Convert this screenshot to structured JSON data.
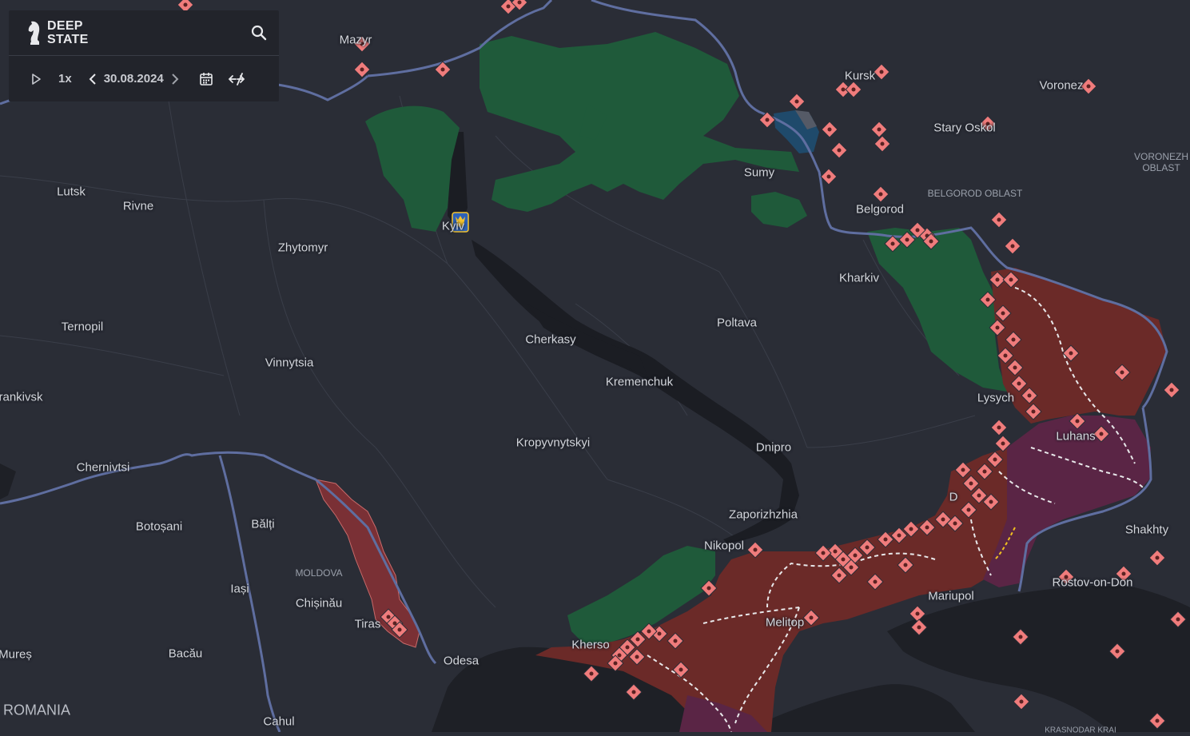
{
  "brand": {
    "line1": "DEEP",
    "line2": "STATE"
  },
  "controls": {
    "speed": "1x",
    "date": "30.08.2024"
  },
  "cities": [
    {
      "name": "Mazyr",
      "label": "Mazyr"
    },
    {
      "name": "Kursk",
      "label": "Kursk"
    },
    {
      "name": "Voronezh",
      "label": "Voronez"
    },
    {
      "name": "Stary Oskol",
      "label": "Stary Oskol"
    },
    {
      "name": "Sumy",
      "label": "Sumy"
    },
    {
      "name": "Belgorod",
      "label": "Belgorod"
    },
    {
      "name": "Lutsk",
      "label": "Lutsk"
    },
    {
      "name": "Rivne",
      "label": "Rivne"
    },
    {
      "name": "Kyiv",
      "label": "Kyiv"
    },
    {
      "name": "Zhytomyr",
      "label": "Zhytomyr"
    },
    {
      "name": "Kharkiv",
      "label": "Kharkiv"
    },
    {
      "name": "Ternopil",
      "label": "Ternopil"
    },
    {
      "name": "Poltava",
      "label": "Poltava"
    },
    {
      "name": "Cherkasy",
      "label": "Cherkasy"
    },
    {
      "name": "Vinnytsia",
      "label": "Vinnytsia"
    },
    {
      "name": "Kremenchuk",
      "label": "Kremenchuk"
    },
    {
      "name": "Lysychansk",
      "label": "Lysych"
    },
    {
      "name": "Ivano-Frankivsk",
      "label": "rankivsk"
    },
    {
      "name": "Luhansk",
      "label": "Luhans"
    },
    {
      "name": "Kropyvnytskyi",
      "label": "Kropyvnytskyi"
    },
    {
      "name": "Dnipro",
      "label": "Dnipro"
    },
    {
      "name": "Chernivtsi",
      "label": "Chernivtsi"
    },
    {
      "name": "Donetsk",
      "label": "D"
    },
    {
      "name": "Botosani",
      "label": "Botoșani"
    },
    {
      "name": "Balti",
      "label": "Bălți"
    },
    {
      "name": "Zaporizhzhia",
      "label": "Zaporizhzhia"
    },
    {
      "name": "Shakhty",
      "label": "Shakhty"
    },
    {
      "name": "Nikopol",
      "label": "Nikopol"
    },
    {
      "name": "Iasi",
      "label": "Iași"
    },
    {
      "name": "Rostov-on-Don",
      "label": "Rostov-on-Don"
    },
    {
      "name": "Chisinau",
      "label": "Chișinău"
    },
    {
      "name": "Mariupol",
      "label": "Mariupol"
    },
    {
      "name": "Tiraspol",
      "label": "Tiras"
    },
    {
      "name": "Melitopol",
      "label": "Melitop"
    },
    {
      "name": "Kherson",
      "label": "Kherso"
    },
    {
      "name": "Bacau",
      "label": "Bacău"
    },
    {
      "name": "Mures",
      "label": "Mureș"
    },
    {
      "name": "Odesa",
      "label": "Odesa"
    },
    {
      "name": "Cahul",
      "label": "Cahul"
    }
  ],
  "regions": [
    {
      "name": "Voronezh Oblast",
      "label": "VORONEZH\nOBLAST"
    },
    {
      "name": "Belgorod Oblast",
      "label": "BELGOROD OBLAST"
    },
    {
      "name": "Moldova",
      "label": "MOLDOVA"
    },
    {
      "name": "Krasnodar Krai",
      "label": "KRASNODAR KRAI"
    }
  ],
  "countries": [
    {
      "name": "Romania",
      "label": "ROMANIA"
    }
  ],
  "colors": {
    "land": "#2a2d36",
    "sea": "#1e2026",
    "border": "#5f6ea0",
    "liberated": "#1f5a3a",
    "occupied": "#6b2a28",
    "occupied_pre2022": "#5a2545",
    "transnistria": "#7a3035",
    "kursk_advance": "#1f4a6b",
    "marker": "#f07c7c",
    "panel": "#22242b"
  },
  "icons": {
    "search": "search-icon",
    "play": "play-icon",
    "prev": "chevron-left-icon",
    "next": "chevron-right-icon",
    "calendar": "calendar-icon",
    "compare": "compare-icon",
    "marker": "attack-marker-icon"
  }
}
